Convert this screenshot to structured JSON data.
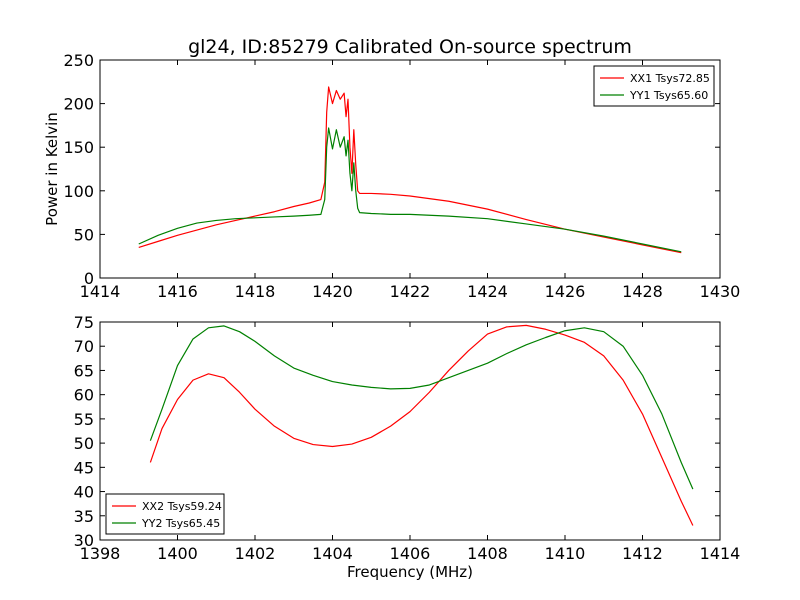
{
  "figure_title": "gl24, ID:85279 Calibrated On-source spectrum",
  "chart_data": [
    {
      "type": "line",
      "title": "gl24, ID:85279 Calibrated On-source spectrum",
      "xlabel": "",
      "ylabel": "Power in Kelvin",
      "xlim": [
        1414,
        1430
      ],
      "ylim": [
        0,
        250
      ],
      "xticks": [
        1414,
        1416,
        1418,
        1420,
        1422,
        1424,
        1426,
        1428,
        1430
      ],
      "yticks": [
        0,
        50,
        100,
        150,
        200,
        250
      ],
      "grid": false,
      "legend_position": "top-right",
      "series": [
        {
          "name": "XX1 Tsys72.85",
          "color": "#ff0000",
          "x": [
            1415.0,
            1415.5,
            1416.0,
            1416.5,
            1417.0,
            1417.5,
            1418.0,
            1418.5,
            1419.0,
            1419.4,
            1419.7,
            1419.8,
            1419.85,
            1419.9,
            1420.0,
            1420.1,
            1420.2,
            1420.3,
            1420.35,
            1420.4,
            1420.45,
            1420.5,
            1420.55,
            1420.6,
            1420.65,
            1420.7,
            1421.0,
            1421.5,
            1422.0,
            1423.0,
            1424.0,
            1425.0,
            1426.0,
            1427.0,
            1428.0,
            1429.0
          ],
          "y": [
            35,
            42,
            49,
            55,
            61,
            66,
            71,
            76,
            82,
            86,
            90,
            110,
            190,
            219,
            200,
            215,
            205,
            212,
            185,
            205,
            150,
            120,
            170,
            130,
            100,
            97,
            97,
            96,
            94,
            88,
            79,
            67,
            56,
            47,
            38,
            29
          ]
        },
        {
          "name": "YY1 Tsys65.60",
          "color": "#008000",
          "x": [
            1415.0,
            1415.5,
            1416.0,
            1416.5,
            1417.0,
            1417.5,
            1418.0,
            1418.5,
            1419.0,
            1419.4,
            1419.7,
            1419.8,
            1419.85,
            1419.9,
            1420.0,
            1420.1,
            1420.2,
            1420.3,
            1420.35,
            1420.4,
            1420.45,
            1420.5,
            1420.55,
            1420.6,
            1420.65,
            1420.7,
            1421.0,
            1421.5,
            1422.0,
            1423.0,
            1424.0,
            1425.0,
            1426.0,
            1427.0,
            1428.0,
            1429.0
          ],
          "y": [
            39,
            49,
            57,
            63,
            66,
            68,
            69,
            70,
            71,
            72,
            73,
            90,
            150,
            172,
            148,
            170,
            150,
            162,
            140,
            158,
            120,
            100,
            132,
            100,
            80,
            75,
            74,
            73,
            73,
            71,
            68,
            62,
            56,
            48,
            39,
            30
          ]
        }
      ]
    },
    {
      "type": "line",
      "title": "",
      "xlabel": "Frequency (MHz)",
      "ylabel": "",
      "xlim": [
        1398,
        1414
      ],
      "ylim": [
        30,
        75
      ],
      "xticks": [
        1398,
        1400,
        1402,
        1404,
        1406,
        1408,
        1410,
        1412,
        1414
      ],
      "yticks": [
        30,
        35,
        40,
        45,
        50,
        55,
        60,
        65,
        70,
        75
      ],
      "grid": false,
      "legend_position": "bottom-left",
      "series": [
        {
          "name": "XX2 Tsys59.24",
          "color": "#ff0000",
          "x": [
            1399.3,
            1399.6,
            1400.0,
            1400.4,
            1400.8,
            1401.2,
            1401.6,
            1402.0,
            1402.5,
            1403.0,
            1403.5,
            1404.0,
            1404.5,
            1405.0,
            1405.5,
            1406.0,
            1406.5,
            1407.0,
            1407.5,
            1408.0,
            1408.5,
            1409.0,
            1409.5,
            1410.0,
            1410.5,
            1411.0,
            1411.5,
            1412.0,
            1412.5,
            1413.0,
            1413.3
          ],
          "y": [
            46,
            53,
            59,
            63,
            64.3,
            63.5,
            60.5,
            57,
            53.5,
            51,
            49.7,
            49.3,
            49.8,
            51.2,
            53.5,
            56.5,
            60.5,
            65,
            69,
            72.5,
            74,
            74.3,
            73.5,
            72.3,
            70.8,
            68,
            63,
            56,
            47,
            38,
            33
          ]
        },
        {
          "name": "YY2 Tsys65.45",
          "color": "#008000",
          "x": [
            1399.3,
            1399.6,
            1400.0,
            1400.4,
            1400.8,
            1401.2,
            1401.6,
            1402.0,
            1402.5,
            1403.0,
            1403.5,
            1404.0,
            1404.5,
            1405.0,
            1405.5,
            1406.0,
            1406.5,
            1407.0,
            1407.5,
            1408.0,
            1408.5,
            1409.0,
            1409.5,
            1410.0,
            1410.5,
            1411.0,
            1411.5,
            1412.0,
            1412.5,
            1413.0,
            1413.3
          ],
          "y": [
            50.5,
            57,
            66,
            71.5,
            73.8,
            74.2,
            73,
            71,
            68,
            65.5,
            64,
            62.7,
            62,
            61.5,
            61.2,
            61.3,
            62,
            63.5,
            65,
            66.5,
            68.5,
            70.3,
            71.8,
            73.2,
            73.8,
            73,
            70,
            64,
            56,
            46,
            40.5
          ]
        }
      ]
    }
  ]
}
